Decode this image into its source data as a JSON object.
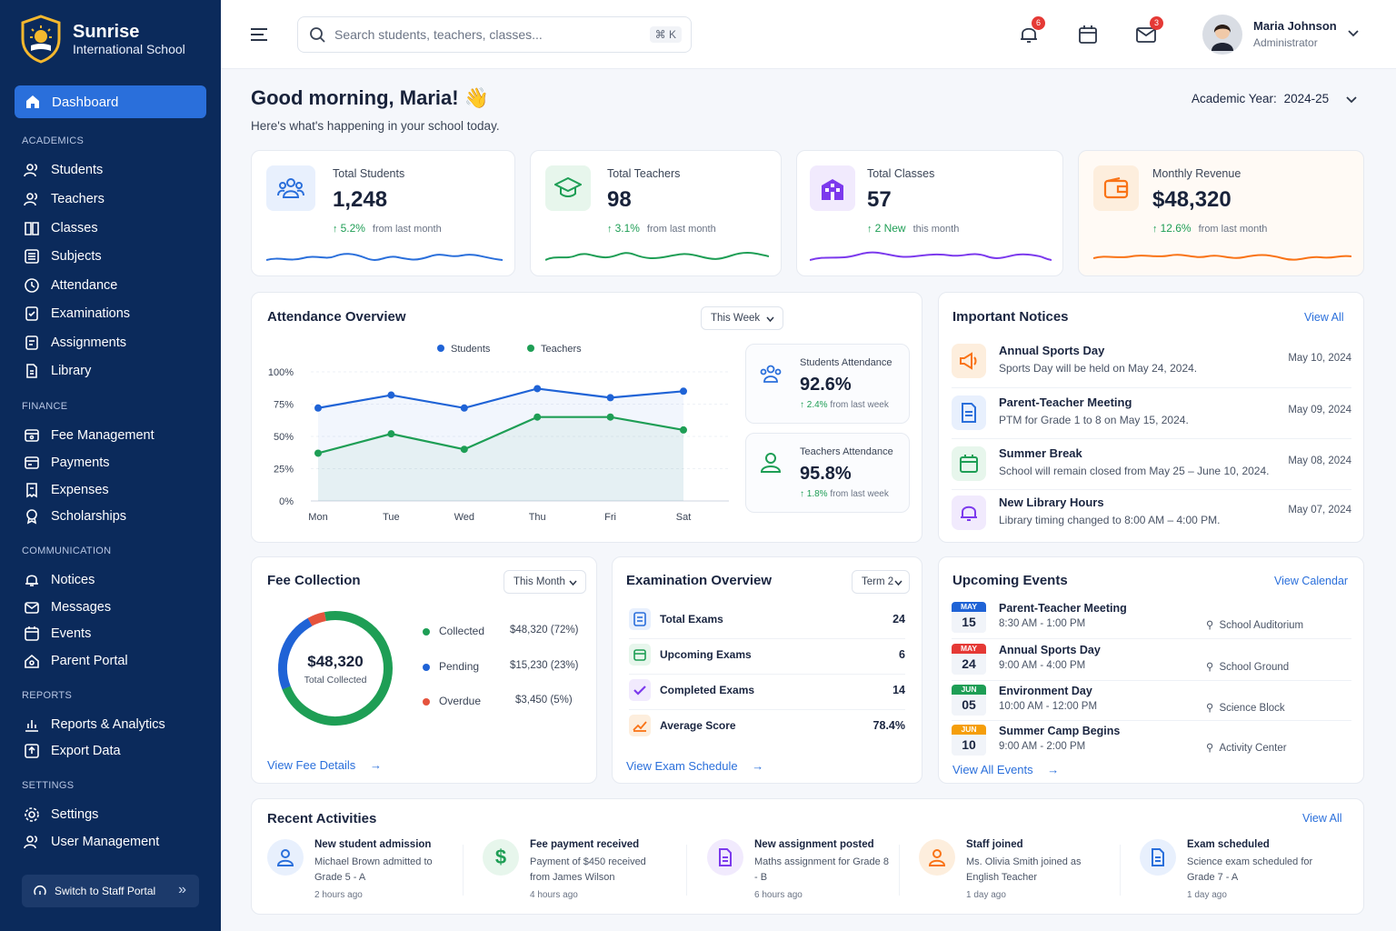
{
  "brand": {
    "name": "Sunrise",
    "subtitle": "International School"
  },
  "nav": {
    "dashboard": "Dashboard",
    "academics_header": "ACADEMICS",
    "academics": [
      "Students",
      "Teachers",
      "Classes",
      "Subjects",
      "Attendance",
      "Examinations",
      "Assignments",
      "Library"
    ],
    "finance_header": "FINANCE",
    "finance": [
      "Fee Management",
      "Payments",
      "Expenses",
      "Scholarships"
    ],
    "communication_header": "COMMUNICATION",
    "communication": [
      "Notices",
      "Messages",
      "Events",
      "Parent Portal"
    ],
    "reports_header": "REPORTS",
    "reports": [
      "Reports & Analytics",
      "Export Data"
    ],
    "settings_header": "SETTINGS",
    "settings": [
      "Settings",
      "User Management"
    ],
    "switch_portal": "Switch to Staff Portal"
  },
  "topbar": {
    "search_placeholder": "Search students, teachers, classes...",
    "shortcut": "⌘ K",
    "notifications_count": "6",
    "messages_count": "3",
    "user_name": "Maria Johnson",
    "user_role": "Administrator"
  },
  "greeting": {
    "title": "Good morning, Maria! 👋",
    "subtitle": "Here's what's happening in your school today.",
    "academic_year_label": "Academic Year:",
    "academic_year": "2024-25"
  },
  "stats": [
    {
      "title": "Total Students",
      "value": "1,248",
      "change": "5.2%",
      "suffix": "from last month",
      "color": "#2a6fdb"
    },
    {
      "title": "Total Teachers",
      "value": "98",
      "change": "3.1%",
      "suffix": "from last month",
      "color": "#16a34a"
    },
    {
      "title": "Total Classes",
      "value": "57",
      "change": "2 New",
      "suffix": "this month",
      "color": "#7c3aed"
    },
    {
      "title": "Monthly Revenue",
      "value": "$48,320",
      "change": "12.6%",
      "suffix": "from last month",
      "color": "#f97316"
    }
  ],
  "attendance": {
    "title": "Attendance Overview",
    "filter": "This Week",
    "students_summary": {
      "label": "Students Attendance",
      "value": "92.6%",
      "change": "2.4%",
      "suffix": "from last week"
    },
    "teachers_summary": {
      "label": "Teachers Attendance",
      "value": "95.8%",
      "change": "1.8%",
      "suffix": "from last week"
    }
  },
  "chart_data": {
    "type": "line",
    "categories": [
      "Mon",
      "Tue",
      "Wed",
      "Thu",
      "Fri",
      "Sat"
    ],
    "series": [
      {
        "name": "Students",
        "values": [
          72,
          82,
          72,
          87,
          80,
          85
        ],
        "color": "#1f63d6"
      },
      {
        "name": "Teachers",
        "values": [
          37,
          52,
          40,
          65,
          65,
          55
        ],
        "color": "#1e9e55"
      }
    ],
    "yticks": [
      "100%",
      "75%",
      "50%",
      "25%",
      "0%"
    ],
    "ylim": [
      0,
      100
    ],
    "legend": "top"
  },
  "notices": {
    "title": "Important Notices",
    "view_all": "View All",
    "items": [
      {
        "title": "Annual Sports Day",
        "desc": "Sports Day will be held on May 24, 2024.",
        "date": "May 10, 2024"
      },
      {
        "title": "Parent-Teacher Meeting",
        "desc": "PTM for Grade 1 to 8 on May 15, 2024.",
        "date": "May 09, 2024"
      },
      {
        "title": "Summer Break",
        "desc": "School will remain closed from May 25 – June 10, 2024.",
        "date": "May 08, 2024"
      },
      {
        "title": "New Library Hours",
        "desc": "Library timing changed to 8:00 AM – 4:00 PM.",
        "date": "May 07, 2024"
      }
    ]
  },
  "fees": {
    "title": "Fee Collection",
    "filter": "This Month",
    "total": "$48,320",
    "total_label": "Total Collected",
    "rows": [
      {
        "label": "Collected",
        "value": "$48,320 (72%)",
        "color": "#1e9e55",
        "pct": 72
      },
      {
        "label": "Pending",
        "value": "$15,230 (23%)",
        "color": "#1f63d6",
        "pct": 23
      },
      {
        "label": "Overdue",
        "value": "$3,450 (5%)",
        "color": "#e5533d",
        "pct": 5
      }
    ],
    "link": "View Fee Details"
  },
  "exams": {
    "title": "Examination Overview",
    "filter": "Term 2",
    "rows": [
      {
        "label": "Total Exams",
        "value": "24"
      },
      {
        "label": "Upcoming Exams",
        "value": "6"
      },
      {
        "label": "Completed Exams",
        "value": "14"
      },
      {
        "label": "Average Score",
        "value": "78.4%"
      }
    ],
    "link": "View Exam Schedule"
  },
  "events": {
    "title": "Upcoming Events",
    "view_calendar": "View Calendar",
    "items": [
      {
        "month": "MAY",
        "day": "15",
        "title": "Parent-Teacher Meeting",
        "time": "8:30 AM - 1:00 PM",
        "location": "School Auditorium",
        "color": "#1f63d6"
      },
      {
        "month": "MAY",
        "day": "24",
        "title": "Annual Sports Day",
        "time": "9:00 AM - 4:00 PM",
        "location": "School Ground",
        "color": "#e53935"
      },
      {
        "month": "JUN",
        "day": "05",
        "title": "Environment Day",
        "time": "10:00 AM - 12:00 PM",
        "location": "Science Block",
        "color": "#1e9e55"
      },
      {
        "month": "JUN",
        "day": "10",
        "title": "Summer Camp Begins",
        "time": "9:00 AM - 2:00 PM",
        "location": "Activity Center",
        "color": "#f59e0b"
      }
    ],
    "link": "View All Events"
  },
  "activities": {
    "title": "Recent Activities",
    "view_all": "View All",
    "items": [
      {
        "title": "New student admission",
        "desc": "Michael Brown admitted to Grade 5 - A",
        "time": "2 hours ago"
      },
      {
        "title": "Fee payment received",
        "desc": "Payment of $450 received from James Wilson",
        "time": "4 hours ago"
      },
      {
        "title": "New assignment posted",
        "desc": "Maths assignment for Grade 8 - B",
        "time": "6 hours ago"
      },
      {
        "title": "Staff joined",
        "desc": "Ms. Olivia Smith joined as English Teacher",
        "time": "1 day ago"
      },
      {
        "title": "Exam scheduled",
        "desc": "Science exam scheduled for Grade 7 - A",
        "time": "1 day ago"
      }
    ]
  }
}
